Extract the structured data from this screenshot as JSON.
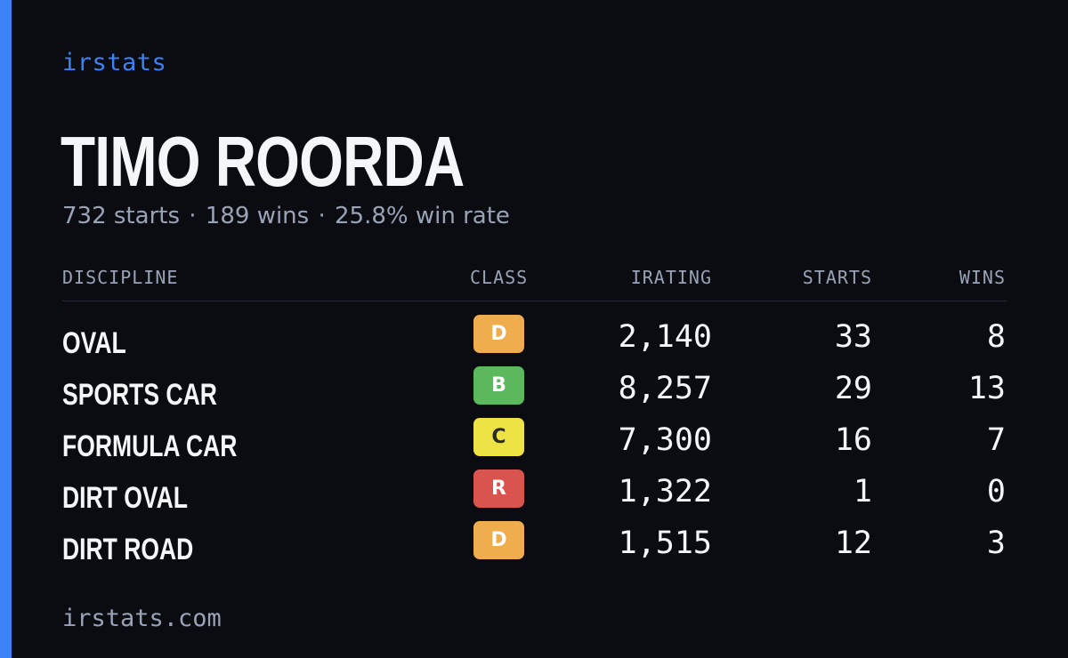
{
  "brand": "irstats",
  "player": {
    "name": "TIMO ROORDA"
  },
  "summary": {
    "starts": "732 starts",
    "wins": "189 wins",
    "win_rate": "25.8% win rate",
    "separator": "·"
  },
  "table": {
    "headers": {
      "discipline": "DISCIPLINE",
      "class": "CLASS",
      "irating": "IRATING",
      "starts": "STARTS",
      "wins": "WINS"
    },
    "rows": [
      {
        "discipline": "OVAL",
        "class": "D",
        "class_color": "#f0ad4e",
        "class_text_color": "#ffffff",
        "irating": "2,140",
        "starts": "33",
        "wins": "8"
      },
      {
        "discipline": "SPORTS CAR",
        "class": "B",
        "class_color": "#5cb85c",
        "class_text_color": "#ffffff",
        "irating": "8,257",
        "starts": "29",
        "wins": "13"
      },
      {
        "discipline": "FORMULA CAR",
        "class": "C",
        "class_color": "#ede345",
        "class_text_color": "#2a2a2a",
        "irating": "7,300",
        "starts": "16",
        "wins": "7"
      },
      {
        "discipline": "DIRT OVAL",
        "class": "R",
        "class_color": "#d9534f",
        "class_text_color": "#ffffff",
        "irating": "1,322",
        "starts": "1",
        "wins": "0"
      },
      {
        "discipline": "DIRT ROAD",
        "class": "D",
        "class_color": "#f0ad4e",
        "class_text_color": "#ffffff",
        "irating": "1,515",
        "starts": "12",
        "wins": "3"
      }
    ]
  },
  "footer": "irstats.com",
  "colors": {
    "accent": "#3b82f6",
    "background": "#0a0c12",
    "muted_text": "#9aa3b6"
  }
}
